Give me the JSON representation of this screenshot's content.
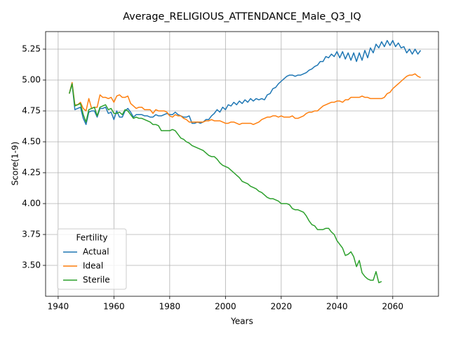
{
  "chart_data": {
    "type": "line",
    "title": "Average_RELIGIOUS_ATTENDANCE_Male_Q3_IQ",
    "xlabel": "Years",
    "ylabel": "Score(1-9)",
    "legend_title": "Fertility",
    "legend": "lower left",
    "grid": true,
    "xlim": [
      1935.5,
      2076.4
    ],
    "ylim": [
      3.25,
      5.392
    ],
    "xticks": [
      1940,
      1960,
      1980,
      2000,
      2020,
      2040,
      2060
    ],
    "yticks": [
      {
        "value": 3.5,
        "label": "3.50"
      },
      3.75,
      {
        "value": 4,
        "label": "4.00"
      },
      4.25,
      {
        "value": 4.5,
        "label": "4.50"
      },
      4.75,
      {
        "value": 5,
        "label": "5.00"
      },
      5.25
    ],
    "x": [
      1944,
      1945,
      1946,
      1947,
      1948,
      1949,
      1950,
      1951,
      1952,
      1953,
      1954,
      1955,
      1956,
      1957,
      1958,
      1959,
      1960,
      1961,
      1962,
      1963,
      1964,
      1965,
      1966,
      1967,
      1968,
      1969,
      1970,
      1971,
      1972,
      1973,
      1974,
      1975,
      1976,
      1977,
      1978,
      1979,
      1980,
      1981,
      1982,
      1983,
      1984,
      1985,
      1986,
      1987,
      1988,
      1989,
      1990,
      1991,
      1992,
      1993,
      1994,
      1995,
      1996,
      1997,
      1998,
      1999,
      2000,
      2001,
      2002,
      2003,
      2004,
      2005,
      2006,
      2007,
      2008,
      2009,
      2010,
      2011,
      2012,
      2013,
      2014,
      2015,
      2016,
      2017,
      2018,
      2019,
      2020,
      2021,
      2022,
      2023,
      2024,
      2025,
      2026,
      2027,
      2028,
      2029,
      2030,
      2031,
      2032,
      2033,
      2034,
      2035,
      2036,
      2037,
      2038,
      2039,
      2040,
      2041,
      2042,
      2043,
      2044,
      2045,
      2046,
      2047,
      2048,
      2049,
      2050,
      2051,
      2052,
      2053,
      2054,
      2055,
      2056,
      2057,
      2058,
      2059,
      2060,
      2061,
      2062,
      2063,
      2064,
      2065,
      2066,
      2067,
      2068,
      2069,
      2070
    ],
    "series": [
      {
        "name": "Actual",
        "color": "#1f77b4",
        "values": [
          4.89,
          4.97,
          4.76,
          4.77,
          4.78,
          4.69,
          4.64,
          4.74,
          4.75,
          4.75,
          4.7,
          4.77,
          4.77,
          4.78,
          4.73,
          4.74,
          4.68,
          4.75,
          4.7,
          4.7,
          4.75,
          4.77,
          4.74,
          4.7,
          4.72,
          4.72,
          4.72,
          4.71,
          4.71,
          4.7,
          4.7,
          4.72,
          4.71,
          4.71,
          4.72,
          4.73,
          4.72,
          4.72,
          4.74,
          4.72,
          4.71,
          4.7,
          4.7,
          4.71,
          4.65,
          4.65,
          4.66,
          4.65,
          4.66,
          4.68,
          4.68,
          4.71,
          4.73,
          4.76,
          4.74,
          4.78,
          4.76,
          4.8,
          4.79,
          4.82,
          4.8,
          4.83,
          4.81,
          4.84,
          4.82,
          4.85,
          4.83,
          4.85,
          4.84,
          4.85,
          4.84,
          4.88,
          4.89,
          4.93,
          4.94,
          4.97,
          4.99,
          5.01,
          5.03,
          5.04,
          5.04,
          5.03,
          5.04,
          5.04,
          5.05,
          5.06,
          5.08,
          5.09,
          5.11,
          5.12,
          5.15,
          5.15,
          5.19,
          5.18,
          5.21,
          5.19,
          5.23,
          5.18,
          5.23,
          5.17,
          5.22,
          5.16,
          5.22,
          5.15,
          5.22,
          5.16,
          5.24,
          5.18,
          5.26,
          5.22,
          5.29,
          5.26,
          5.31,
          5.27,
          5.32,
          5.28,
          5.32,
          5.27,
          5.3,
          5.26,
          5.27,
          5.22,
          5.25,
          5.21,
          5.25,
          5.21,
          5.24
        ]
      },
      {
        "name": "Ideal",
        "color": "#ff7f0e",
        "values": [
          4.89,
          4.98,
          4.8,
          4.8,
          4.82,
          4.77,
          4.75,
          4.85,
          4.77,
          4.78,
          4.78,
          4.88,
          4.86,
          4.86,
          4.85,
          4.86,
          4.82,
          4.87,
          4.88,
          4.86,
          4.86,
          4.87,
          4.81,
          4.79,
          4.77,
          4.78,
          4.78,
          4.76,
          4.76,
          4.76,
          4.73,
          4.76,
          4.75,
          4.75,
          4.75,
          4.74,
          4.71,
          4.7,
          4.72,
          4.71,
          4.71,
          4.69,
          4.68,
          4.66,
          4.66,
          4.66,
          4.66,
          4.66,
          4.66,
          4.67,
          4.67,
          4.68,
          4.67,
          4.67,
          4.67,
          4.66,
          4.65,
          4.65,
          4.66,
          4.66,
          4.65,
          4.64,
          4.65,
          4.65,
          4.65,
          4.65,
          4.64,
          4.65,
          4.66,
          4.68,
          4.69,
          4.7,
          4.7,
          4.71,
          4.71,
          4.7,
          4.71,
          4.7,
          4.7,
          4.7,
          4.71,
          4.69,
          4.69,
          4.7,
          4.71,
          4.73,
          4.74,
          4.74,
          4.75,
          4.75,
          4.77,
          4.79,
          4.8,
          4.81,
          4.82,
          4.82,
          4.83,
          4.83,
          4.82,
          4.84,
          4.84,
          4.86,
          4.86,
          4.86,
          4.86,
          4.87,
          4.86,
          4.86,
          4.85,
          4.85,
          4.85,
          4.85,
          4.85,
          4.86,
          4.89,
          4.9,
          4.93,
          4.95,
          4.97,
          4.99,
          5.01,
          5.03,
          5.04,
          5.04,
          5.05,
          5.03,
          5.02
        ]
      },
      {
        "name": "Sterile",
        "color": "#2ca02c",
        "values": [
          4.89,
          4.97,
          4.79,
          4.8,
          4.81,
          4.72,
          4.66,
          4.76,
          4.77,
          4.78,
          4.71,
          4.78,
          4.79,
          4.8,
          4.76,
          4.77,
          4.73,
          4.73,
          4.74,
          4.72,
          4.76,
          4.75,
          4.72,
          4.69,
          4.7,
          4.69,
          4.69,
          4.68,
          4.67,
          4.66,
          4.64,
          4.64,
          4.63,
          4.59,
          4.59,
          4.59,
          4.59,
          4.6,
          4.59,
          4.56,
          4.53,
          4.52,
          4.5,
          4.49,
          4.47,
          4.46,
          4.45,
          4.44,
          4.43,
          4.41,
          4.39,
          4.38,
          4.38,
          4.36,
          4.33,
          4.31,
          4.3,
          4.29,
          4.27,
          4.25,
          4.23,
          4.21,
          4.18,
          4.17,
          4.16,
          4.14,
          4.13,
          4.12,
          4.1,
          4.09,
          4.07,
          4.05,
          4.04,
          4.04,
          4.03,
          4.02,
          4.0,
          4.0,
          4.0,
          3.99,
          3.96,
          3.95,
          3.95,
          3.94,
          3.93,
          3.9,
          3.86,
          3.83,
          3.82,
          3.79,
          3.79,
          3.79,
          3.8,
          3.8,
          3.77,
          3.75,
          3.7,
          3.67,
          3.64,
          3.58,
          3.59,
          3.61,
          3.57,
          3.49,
          3.54,
          3.44,
          3.41,
          3.39,
          3.38,
          3.38,
          3.45,
          3.36,
          3.37,
          null,
          null,
          null,
          null,
          null,
          null,
          null,
          null,
          null,
          null,
          null,
          null,
          null,
          null
        ]
      }
    ]
  }
}
